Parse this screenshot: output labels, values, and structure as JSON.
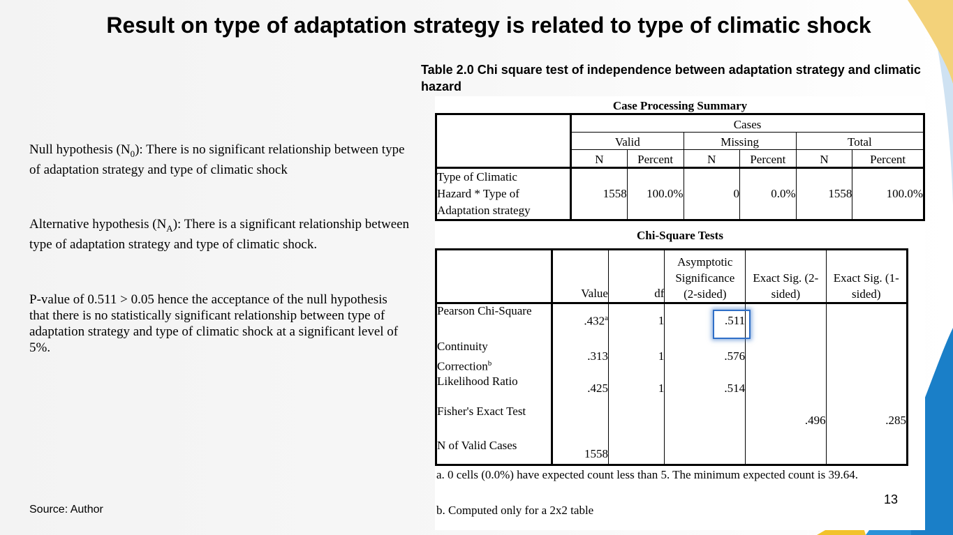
{
  "title": "Result on type of adaptation strategy is related to type of climatic shock",
  "caption": "Table 2.0 Chi square test of independence between adaptation strategy and climatic hazard",
  "hypotheses": {
    "null_prefix": "Null hypothesis (N",
    "null_sub": "0",
    "null_rest": "): There is no significant relationship between type of adaptation strategy and type of climatic shock",
    "alt_prefix": "Alternative hypothesis (N",
    "alt_sub": "A",
    "alt_rest": "): There is a significant relationship between type of adaptation strategy and type of climatic shock.",
    "pvalue_text": "P-value of 0.511 > 0.05 hence the acceptance of the null hypothesis that there is no statistically significant relationship between type of adaptation strategy and type of climatic shock at a significant level of 5%."
  },
  "source": "Source: Author",
  "page_number": "13",
  "case_summary": {
    "title": "Case Processing Summary",
    "cases_header": "Cases",
    "groups": [
      "Valid",
      "Missing",
      "Total"
    ],
    "subheaders": [
      "N",
      "Percent",
      "N",
      "Percent",
      "N",
      "Percent"
    ],
    "row_label_lines": [
      "Type of Climatic",
      "Hazard * Type of",
      "Adaptation strategy"
    ],
    "row_values": [
      "1558",
      "100.0%",
      "0",
      "0.0%",
      "1558",
      "100.0%"
    ]
  },
  "chi_square": {
    "title": "Chi-Square Tests",
    "headers": {
      "value": "Value",
      "df": "df",
      "asym_lines": [
        "Asymptotic",
        "Significance",
        "(2-sided)"
      ],
      "exact2_lines": [
        "Exact Sig. (2-",
        "sided)"
      ],
      "exact1_lines": [
        "Exact Sig. (1-",
        "sided)"
      ]
    },
    "rows": [
      {
        "label": "Pearson Chi-Square",
        "value": ".432",
        "value_sup": "a",
        "df": "1",
        "asym": ".511",
        "exact2": "",
        "exact1": ""
      },
      {
        "label": "Continuity",
        "label2": "Correction",
        "label_sup": "b",
        "value": ".313",
        "df": "1",
        "asym": ".576",
        "exact2": "",
        "exact1": ""
      },
      {
        "label": "Likelihood Ratio",
        "value": ".425",
        "df": "1",
        "asym": ".514",
        "exact2": "",
        "exact1": ""
      },
      {
        "label": "Fisher's Exact Test",
        "value": "",
        "df": "",
        "asym": "",
        "exact2": ".496",
        "exact1": ".285"
      },
      {
        "label": "N of Valid Cases",
        "value": "1558",
        "df": "",
        "asym": "",
        "exact2": "",
        "exact1": ""
      }
    ],
    "footnote_a": "a. 0 cells (0.0%) have expected count less than 5. The minimum expected count is 39.64.",
    "footnote_b": "b. Computed only for a 2x2 table"
  },
  "colors": {
    "accent_blue": "#1a7fc8",
    "accent_yellow": "#f2c22b",
    "highlight": "#2f6fc7"
  }
}
